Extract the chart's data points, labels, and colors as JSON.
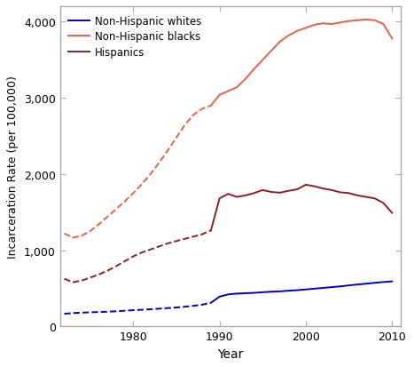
{
  "title": "",
  "xlabel": "Year",
  "ylabel": "Incarceration Rate (per 100,000)",
  "ylim": [
    0,
    4200
  ],
  "yticks": [
    0,
    1000,
    2000,
    3000,
    4000
  ],
  "ytick_labels": [
    "0",
    "1,000",
    "2,000",
    "3,000",
    "4,000"
  ],
  "plot_bg": "#ffffff",
  "fig_bg": "#ffffff",
  "border_color": "#aaaaaa",
  "series": [
    {
      "label": "Non-Hispanic whites",
      "color": "#0000cd",
      "dashed_years": [
        1972,
        1973,
        1974,
        1975,
        1976,
        1977,
        1978,
        1979,
        1980,
        1981,
        1982,
        1983,
        1984,
        1985,
        1986,
        1987,
        1988,
        1989
      ],
      "dashed_values": [
        165,
        175,
        180,
        185,
        188,
        192,
        198,
        205,
        212,
        218,
        225,
        232,
        240,
        248,
        258,
        270,
        285,
        310
      ],
      "solid_years": [
        1989,
        1990,
        1991,
        1992,
        1993,
        1994,
        1995,
        1996,
        1997,
        1998,
        1999,
        2000,
        2001,
        2002,
        2003,
        2004,
        2005,
        2006,
        2007,
        2008,
        2009,
        2010
      ],
      "solid_values": [
        310,
        390,
        420,
        430,
        435,
        440,
        448,
        455,
        460,
        468,
        475,
        485,
        495,
        505,
        515,
        525,
        538,
        550,
        560,
        572,
        582,
        590
      ]
    },
    {
      "label": "Non-Hispanic blacks",
      "color": "#e8604c",
      "dashed_years": [
        1972,
        1973,
        1974,
        1975,
        1976,
        1977,
        1978,
        1979,
        1980,
        1981,
        1982,
        1983,
        1984,
        1985,
        1986,
        1987,
        1988,
        1989
      ],
      "dashed_values": [
        1220,
        1165,
        1190,
        1250,
        1340,
        1440,
        1540,
        1640,
        1750,
        1870,
        2000,
        2150,
        2310,
        2480,
        2650,
        2780,
        2860,
        2900
      ],
      "solid_years": [
        1989,
        1990,
        1991,
        1992,
        1993,
        1994,
        1995,
        1996,
        1997,
        1998,
        1999,
        2000,
        2001,
        2002,
        2003,
        2004,
        2005,
        2006,
        2007,
        2008,
        2009,
        2010
      ],
      "solid_values": [
        2900,
        3040,
        3090,
        3140,
        3250,
        3380,
        3500,
        3620,
        3740,
        3820,
        3880,
        3920,
        3960,
        3980,
        3970,
        3990,
        4010,
        4020,
        4030,
        4020,
        3970,
        3780
      ]
    },
    {
      "label": "Hispanics",
      "color": "#8b2020",
      "dashed_years": [
        1972,
        1973,
        1974,
        1975,
        1976,
        1977,
        1978,
        1979,
        1980,
        1981,
        1982,
        1983,
        1984,
        1985,
        1986,
        1987,
        1988,
        1989
      ],
      "dashed_values": [
        625,
        580,
        600,
        640,
        680,
        730,
        790,
        855,
        920,
        970,
        1010,
        1050,
        1090,
        1120,
        1150,
        1180,
        1210,
        1260
      ],
      "solid_years": [
        1989,
        1990,
        1991,
        1992,
        1993,
        1994,
        1995,
        1996,
        1997,
        1998,
        1999,
        2000,
        2001,
        2002,
        2003,
        2004,
        2005,
        2006,
        2007,
        2008,
        2009,
        2010
      ],
      "solid_values": [
        1260,
        1680,
        1740,
        1700,
        1720,
        1750,
        1790,
        1765,
        1755,
        1780,
        1800,
        1860,
        1840,
        1810,
        1790,
        1760,
        1750,
        1720,
        1700,
        1680,
        1620,
        1490
      ]
    }
  ],
  "legend_loc": "upper left",
  "xticks": [
    1980,
    1990,
    2000,
    2010
  ],
  "xlim": [
    1971.5,
    2011
  ]
}
